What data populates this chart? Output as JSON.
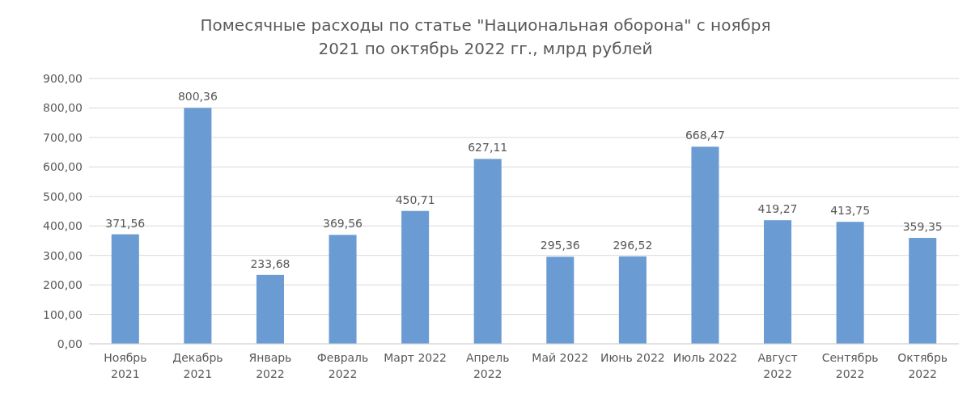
{
  "chart_data": {
    "type": "bar",
    "title": "Помесячные расходы по статье \"Национальная оборона\" с ноября 2021 по октябрь 2022 гг., млрд рублей",
    "categories": [
      "Ноябрь 2021",
      "Декабрь 2021",
      "Январь 2022",
      "Февраль 2022",
      "Март 2022",
      "Апрель 2022",
      "Май 2022",
      "Июнь 2022",
      "Июль 2022",
      "Август 2022",
      "Сентябрь 2022",
      "Октябрь 2022"
    ],
    "values": [
      371.56,
      800.36,
      233.68,
      369.56,
      450.71,
      627.11,
      295.36,
      296.52,
      668.47,
      419.27,
      413.75,
      359.35
    ],
    "value_labels": [
      "371,56",
      "800,36",
      "233,68",
      "369,56",
      "450,71",
      "627,11",
      "295,36",
      "296,52",
      "668,47",
      "419,27",
      "413,75",
      "359,35"
    ],
    "color": "#6a9bd3",
    "ylim": [
      0,
      900
    ],
    "yticks": [
      {
        "value": 0,
        "label": "0,00"
      },
      {
        "value": 100,
        "label": "100,00"
      },
      {
        "value": 200,
        "label": "200,00"
      },
      {
        "value": 300,
        "label": "300,00"
      },
      {
        "value": 400,
        "label": "400,00"
      },
      {
        "value": 500,
        "label": "500,00"
      },
      {
        "value": 600,
        "label": "600,00"
      },
      {
        "value": 700,
        "label": "700,00"
      },
      {
        "value": 800,
        "label": "800,00"
      },
      {
        "value": 900,
        "label": "900,00"
      }
    ],
    "grid": "y"
  }
}
